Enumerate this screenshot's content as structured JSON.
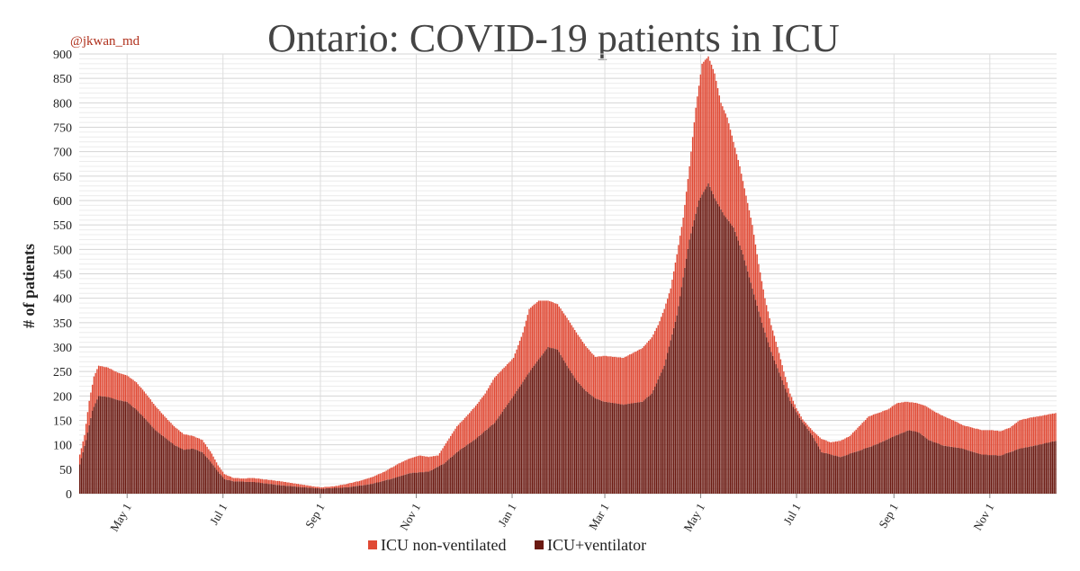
{
  "credit": "@jkwan_md",
  "chart_data": {
    "type": "bar",
    "stacked": true,
    "title": "Ontario: COVID-19 patients in ICU",
    "ylabel": "# of patients",
    "xlabel": "",
    "ylim": [
      0,
      900
    ],
    "yticks": [
      0,
      50,
      100,
      150,
      200,
      250,
      300,
      350,
      400,
      450,
      500,
      550,
      600,
      650,
      700,
      750,
      800,
      850,
      900
    ],
    "xticks": [
      {
        "label": "May 1",
        "day": 30
      },
      {
        "label": "Jul 1",
        "day": 91
      },
      {
        "label": "Sep 1",
        "day": 153
      },
      {
        "label": "Nov 1",
        "day": 214
      },
      {
        "label": "Jan 1",
        "day": 275
      },
      {
        "label": "Mar 1",
        "day": 334
      },
      {
        "label": "May 1",
        "day": 395
      },
      {
        "label": "Jul 1",
        "day": 456
      },
      {
        "label": "Sep 1",
        "day": 518
      },
      {
        "label": "Nov 1",
        "day": 579
      }
    ],
    "x_start": "2020-04-01",
    "x_end": "2021-12-24",
    "legend_position": "bottom",
    "grid": true,
    "series": [
      {
        "name": "ICU non-ventilated",
        "color": "#e04a35"
      },
      {
        "name": "ICU+ventilator",
        "color": "#6b1a12"
      }
    ],
    "total_keypoints": [
      [
        0,
        80
      ],
      [
        3,
        120
      ],
      [
        6,
        190
      ],
      [
        9,
        240
      ],
      [
        12,
        262
      ],
      [
        18,
        258
      ],
      [
        24,
        248
      ],
      [
        30,
        242
      ],
      [
        36,
        228
      ],
      [
        42,
        205
      ],
      [
        48,
        180
      ],
      [
        54,
        158
      ],
      [
        60,
        138
      ],
      [
        66,
        122
      ],
      [
        72,
        118
      ],
      [
        78,
        110
      ],
      [
        84,
        82
      ],
      [
        88,
        58
      ],
      [
        92,
        40
      ],
      [
        98,
        32
      ],
      [
        104,
        31
      ],
      [
        110,
        32
      ],
      [
        118,
        29
      ],
      [
        126,
        26
      ],
      [
        134,
        22
      ],
      [
        142,
        18
      ],
      [
        148,
        15
      ],
      [
        154,
        13
      ],
      [
        162,
        15
      ],
      [
        170,
        20
      ],
      [
        178,
        26
      ],
      [
        186,
        34
      ],
      [
        194,
        45
      ],
      [
        202,
        60
      ],
      [
        210,
        72
      ],
      [
        216,
        78
      ],
      [
        222,
        75
      ],
      [
        228,
        78
      ],
      [
        234,
        108
      ],
      [
        240,
        138
      ],
      [
        246,
        158
      ],
      [
        252,
        180
      ],
      [
        258,
        205
      ],
      [
        264,
        238
      ],
      [
        270,
        258
      ],
      [
        276,
        278
      ],
      [
        282,
        330
      ],
      [
        286,
        378
      ],
      [
        292,
        395
      ],
      [
        298,
        395
      ],
      [
        304,
        388
      ],
      [
        310,
        360
      ],
      [
        316,
        330
      ],
      [
        322,
        302
      ],
      [
        328,
        280
      ],
      [
        334,
        282
      ],
      [
        340,
        280
      ],
      [
        346,
        278
      ],
      [
        352,
        288
      ],
      [
        358,
        298
      ],
      [
        364,
        320
      ],
      [
        368,
        345
      ],
      [
        372,
        378
      ],
      [
        376,
        420
      ],
      [
        380,
        490
      ],
      [
        384,
        565
      ],
      [
        388,
        670
      ],
      [
        392,
        790
      ],
      [
        396,
        880
      ],
      [
        400,
        895
      ],
      [
        404,
        860
      ],
      [
        408,
        800
      ],
      [
        412,
        770
      ],
      [
        416,
        720
      ],
      [
        420,
        670
      ],
      [
        424,
        610
      ],
      [
        428,
        550
      ],
      [
        432,
        470
      ],
      [
        436,
        400
      ],
      [
        440,
        345
      ],
      [
        444,
        300
      ],
      [
        448,
        250
      ],
      [
        452,
        205
      ],
      [
        456,
        175
      ],
      [
        460,
        152
      ],
      [
        466,
        130
      ],
      [
        472,
        112
      ],
      [
        478,
        105
      ],
      [
        484,
        108
      ],
      [
        490,
        118
      ],
      [
        496,
        138
      ],
      [
        502,
        158
      ],
      [
        508,
        165
      ],
      [
        514,
        172
      ],
      [
        520,
        185
      ],
      [
        526,
        188
      ],
      [
        532,
        186
      ],
      [
        538,
        180
      ],
      [
        544,
        168
      ],
      [
        550,
        158
      ],
      [
        556,
        150
      ],
      [
        562,
        140
      ],
      [
        568,
        135
      ],
      [
        574,
        130
      ],
      [
        580,
        130
      ],
      [
        586,
        128
      ],
      [
        592,
        135
      ],
      [
        598,
        150
      ],
      [
        604,
        155
      ],
      [
        610,
        158
      ],
      [
        616,
        162
      ],
      [
        621,
        165
      ]
    ],
    "vent_keypoints": [
      [
        0,
        60
      ],
      [
        4,
        110
      ],
      [
        8,
        170
      ],
      [
        12,
        200
      ],
      [
        18,
        198
      ],
      [
        24,
        192
      ],
      [
        30,
        188
      ],
      [
        36,
        172
      ],
      [
        42,
        152
      ],
      [
        48,
        130
      ],
      [
        54,
        115
      ],
      [
        60,
        100
      ],
      [
        66,
        90
      ],
      [
        72,
        92
      ],
      [
        78,
        85
      ],
      [
        84,
        62
      ],
      [
        88,
        45
      ],
      [
        92,
        30
      ],
      [
        98,
        25
      ],
      [
        110,
        24
      ],
      [
        126,
        18
      ],
      [
        142,
        13
      ],
      [
        154,
        10
      ],
      [
        170,
        13
      ],
      [
        186,
        20
      ],
      [
        200,
        32
      ],
      [
        210,
        42
      ],
      [
        222,
        45
      ],
      [
        232,
        62
      ],
      [
        240,
        85
      ],
      [
        252,
        112
      ],
      [
        264,
        145
      ],
      [
        276,
        200
      ],
      [
        288,
        258
      ],
      [
        298,
        300
      ],
      [
        304,
        295
      ],
      [
        310,
        262
      ],
      [
        316,
        232
      ],
      [
        322,
        210
      ],
      [
        328,
        195
      ],
      [
        334,
        188
      ],
      [
        346,
        182
      ],
      [
        358,
        188
      ],
      [
        364,
        205
      ],
      [
        372,
        262
      ],
      [
        380,
        365
      ],
      [
        388,
        520
      ],
      [
        394,
        600
      ],
      [
        400,
        635
      ],
      [
        404,
        605
      ],
      [
        410,
        570
      ],
      [
        416,
        545
      ],
      [
        422,
        490
      ],
      [
        428,
        420
      ],
      [
        434,
        350
      ],
      [
        440,
        290
      ],
      [
        446,
        240
      ],
      [
        452,
        190
      ],
      [
        458,
        155
      ],
      [
        466,
        120
      ],
      [
        472,
        85
      ],
      [
        484,
        75
      ],
      [
        496,
        88
      ],
      [
        508,
        102
      ],
      [
        520,
        120
      ],
      [
        528,
        130
      ],
      [
        534,
        125
      ],
      [
        540,
        110
      ],
      [
        550,
        98
      ],
      [
        562,
        92
      ],
      [
        574,
        80
      ],
      [
        586,
        78
      ],
      [
        598,
        92
      ],
      [
        610,
        100
      ],
      [
        621,
        108
      ]
    ]
  }
}
